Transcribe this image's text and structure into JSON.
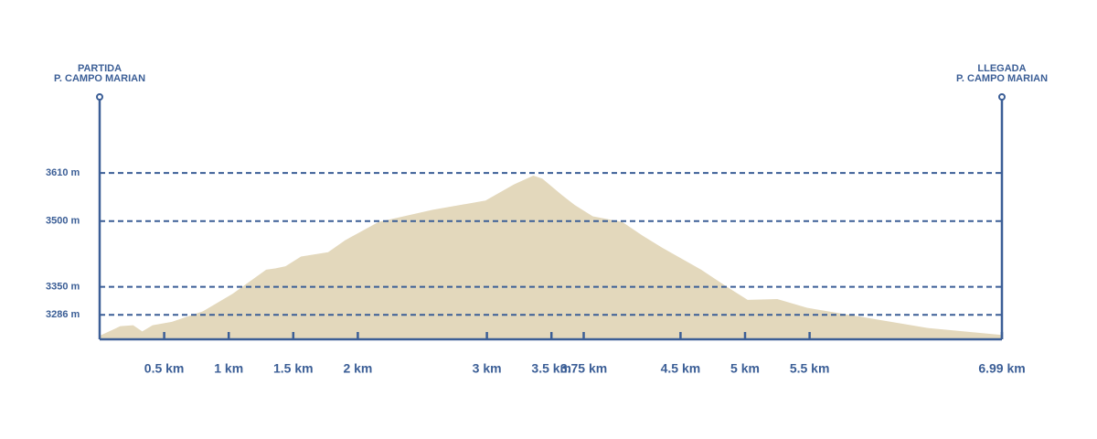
{
  "chart_data": {
    "type": "area",
    "start_label": [
      "PARTIDA",
      "P. CAMPO MARIAN"
    ],
    "end_label": [
      "LLEGADA",
      "P. CAMPO MARIAN"
    ],
    "x": [
      0,
      0.16,
      0.26,
      0.33,
      0.41,
      0.56,
      0.8,
      1.03,
      1.29,
      1.36,
      1.44,
      1.56,
      1.77,
      1.9,
      2.16,
      2.58,
      2.99,
      3.21,
      3.36,
      3.43,
      3.58,
      3.68,
      3.82,
      4.05,
      4.21,
      4.36,
      4.66,
      4.86,
      5.02,
      5.25,
      5.48,
      5.93,
      6.41,
      6.99
    ],
    "values": [
      3238,
      3260,
      3262,
      3248,
      3262,
      3270,
      3294,
      3334,
      3389,
      3392,
      3397,
      3419,
      3429,
      3456,
      3498,
      3526,
      3547,
      3584,
      3604,
      3597,
      3560,
      3537,
      3511,
      3498,
      3466,
      3439,
      3389,
      3350,
      3320,
      3322,
      3302,
      3280,
      3256,
      3240
    ],
    "color": "#e3d8bc",
    "axis_color": "#3b5e96",
    "xlim": [
      0,
      6.99
    ],
    "xticks": [
      {
        "value": 0.5,
        "label": "0.5 km"
      },
      {
        "value": 1,
        "label": "1 km"
      },
      {
        "value": 1.5,
        "label": "1.5 km"
      },
      {
        "value": 2,
        "label": "2 km"
      },
      {
        "value": 3,
        "label": "3 km"
      },
      {
        "value": 3.5,
        "label": "3.5 km"
      },
      {
        "value": 3.75,
        "label": "3.75 km"
      },
      {
        "value": 4.5,
        "label": "4.5 km"
      },
      {
        "value": 5,
        "label": "5 km"
      },
      {
        "value": 5.5,
        "label": "5.5 km"
      },
      {
        "value": 6.99,
        "label": "6.99 km"
      }
    ],
    "ylim": [
      3230,
      3650
    ],
    "yticks": [
      {
        "value": 3610,
        "label": "3610 m"
      },
      {
        "value": 3500,
        "label": "3500 m"
      },
      {
        "value": 3350,
        "label": "3350 m"
      },
      {
        "value": 3286,
        "label": "3286 m"
      }
    ],
    "grid": true
  }
}
